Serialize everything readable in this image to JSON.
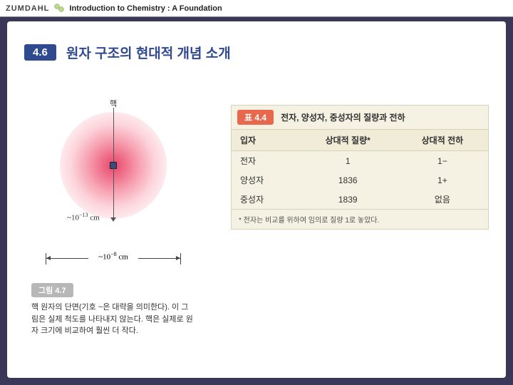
{
  "header": {
    "brand": "ZUMDAHL",
    "subtitle": "Introduction to Chemistry : A Foundation"
  },
  "section": {
    "badge": "4.6",
    "title": "원자 구조의 현대적 개념 소개"
  },
  "figure": {
    "nucleus_label": "핵",
    "radius_label_prefix": "~10",
    "radius_label_exp": "−13",
    "radius_label_unit": "cm",
    "dim_label_prefix": "~10",
    "dim_label_exp": "−8",
    "dim_label_unit": "cm",
    "badge": "그림 4.7",
    "caption": "핵 원자의 단면(기호 ~은 대략을 의미한다). 이 그림은 실제 척도를 나타내지 않는다. 핵은 실제로 원자 크기에 비교하여 훨씬 더 작다.",
    "colors": {
      "core": "#e8476a",
      "mid": "#f7a3b3",
      "edge": "#ffffff",
      "nucleus": "#3a4a7a"
    }
  },
  "table": {
    "badge": "표 4.4",
    "title": "전자, 양성자, 중성자의 질량과 전하",
    "columns": [
      "입자",
      "상대적 질량*",
      "상대적 전하"
    ],
    "rows": [
      [
        "전자",
        "1",
        "1−"
      ],
      [
        "양성자",
        "1836",
        "1+"
      ],
      [
        "중성자",
        "1839",
        "없음"
      ]
    ],
    "footnote": "* 전자는 비교를 위하여 임의로 질량 1로 놓았다.",
    "colors": {
      "bg": "#f5f2e3",
      "border": "#d8d2b8",
      "badge": "#e8684e"
    }
  }
}
